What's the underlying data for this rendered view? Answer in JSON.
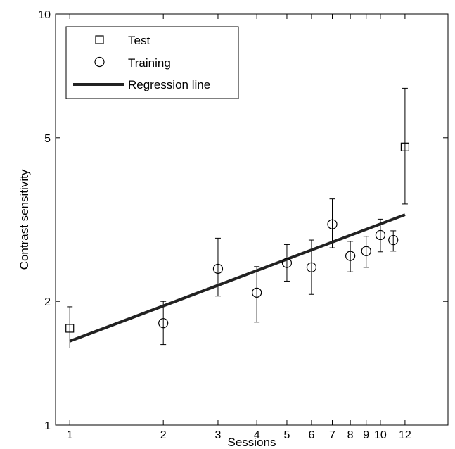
{
  "chart_data": {
    "type": "scatter",
    "title": "",
    "xlabel": "Sessions",
    "ylabel": "Contrast sensitivity",
    "x_scale": "log",
    "y_scale": "log",
    "xlim": [
      0.9,
      16.5
    ],
    "ylim": [
      1,
      10
    ],
    "x_ticks": [
      1,
      2,
      3,
      4,
      5,
      6,
      7,
      8,
      9,
      10,
      12
    ],
    "x_tick_labels": [
      "1",
      "2",
      "3",
      "4",
      "5",
      "6",
      "7",
      "8",
      "9",
      "10",
      "12"
    ],
    "y_ticks": [
      1,
      2,
      5,
      10
    ],
    "y_tick_labels": [
      "1",
      "2",
      "5",
      "10"
    ],
    "grid": false,
    "legend_position": "top-left",
    "legend": [
      {
        "label": "Test",
        "marker": "square"
      },
      {
        "label": "Training",
        "marker": "circle"
      },
      {
        "label": "Regression line",
        "marker": "line"
      }
    ],
    "series": [
      {
        "name": "Test",
        "marker": "square",
        "points": [
          {
            "x": 1,
            "y": 1.72,
            "err_low": 1.54,
            "err_high": 1.94
          },
          {
            "x": 12,
            "y": 4.75,
            "err_low": 3.45,
            "err_high": 6.6
          }
        ]
      },
      {
        "name": "Training",
        "marker": "circle",
        "points": [
          {
            "x": 2,
            "y": 1.77,
            "err_low": 1.57,
            "err_high": 2.0
          },
          {
            "x": 3,
            "y": 2.4,
            "err_low": 2.06,
            "err_high": 2.85
          },
          {
            "x": 4,
            "y": 2.1,
            "err_low": 1.78,
            "err_high": 2.43
          },
          {
            "x": 5,
            "y": 2.48,
            "err_low": 2.24,
            "err_high": 2.75
          },
          {
            "x": 6,
            "y": 2.42,
            "err_low": 2.08,
            "err_high": 2.82
          },
          {
            "x": 7,
            "y": 3.08,
            "err_low": 2.7,
            "err_high": 3.55
          },
          {
            "x": 8,
            "y": 2.58,
            "err_low": 2.36,
            "err_high": 2.8
          },
          {
            "x": 9,
            "y": 2.65,
            "err_low": 2.42,
            "err_high": 2.88
          },
          {
            "x": 10,
            "y": 2.9,
            "err_low": 2.64,
            "err_high": 3.17
          },
          {
            "x": 11,
            "y": 2.82,
            "err_low": 2.65,
            "err_high": 2.97
          }
        ]
      },
      {
        "name": "Regression line",
        "type": "line",
        "points": [
          {
            "x": 1,
            "y": 1.6
          },
          {
            "x": 12,
            "y": 3.25
          }
        ]
      }
    ]
  }
}
